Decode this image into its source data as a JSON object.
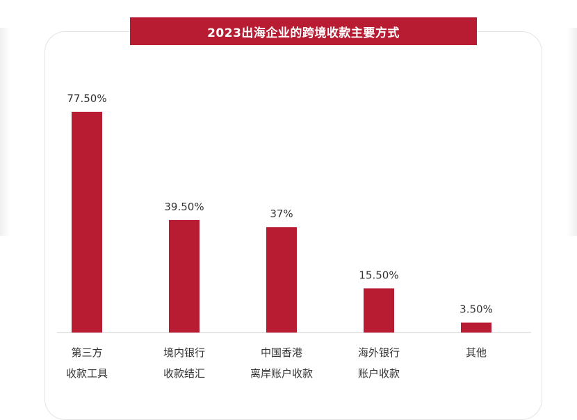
{
  "title": "2023出海企业的跨境收款主要方式",
  "colors": {
    "bar": "#b81c32",
    "banner": "#b81c32",
    "axis": "#cccccc",
    "text": "#333333"
  },
  "chart_data": {
    "type": "bar",
    "title": "2023出海企业的跨境收款主要方式",
    "categories": [
      [
        "第三方",
        "收款工具"
      ],
      [
        "境内银行",
        "收款结汇"
      ],
      [
        "中国香港",
        "离岸账户收款"
      ],
      [
        "海外银行",
        "账户收款"
      ],
      [
        "其他"
      ]
    ],
    "values": [
      77.5,
      39.5,
      37,
      15.5,
      3.5
    ],
    "value_labels": [
      "77.50%",
      "39.50%",
      "37%",
      "15.50%",
      "3.50%"
    ],
    "unit": "%",
    "ylim": [
      0,
      80
    ],
    "grid": false,
    "legend": "none"
  }
}
